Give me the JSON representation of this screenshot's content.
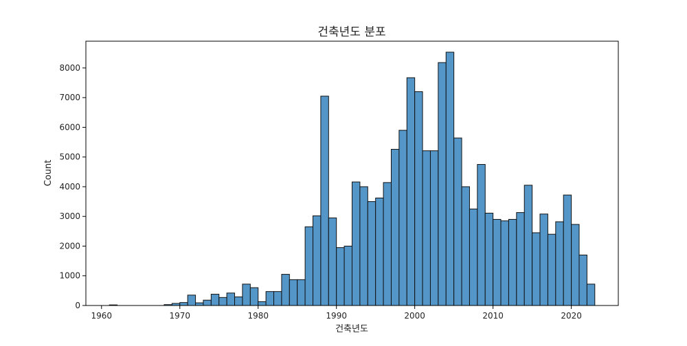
{
  "chart_data": {
    "type": "bar",
    "title": "건축년도 분포",
    "xlabel": "건축년도",
    "ylabel": "Count",
    "xlim": [
      1958,
      2026
    ],
    "ylim": [
      0,
      8900
    ],
    "grid": false,
    "xticks": [
      1960,
      1970,
      1980,
      1990,
      2000,
      2010,
      2020
    ],
    "yticks": [
      0,
      1000,
      2000,
      3000,
      4000,
      5000,
      6000,
      7000,
      8000
    ],
    "bin_start": 1961,
    "bin_width": 1,
    "bar_color": "#5596c8",
    "edge_color": "#111111",
    "values": [
      20,
      0,
      0,
      0,
      0,
      0,
      0,
      30,
      70,
      100,
      350,
      90,
      180,
      380,
      270,
      420,
      290,
      720,
      600,
      130,
      470,
      470,
      1050,
      870,
      870,
      2650,
      3020,
      7050,
      2950,
      1950,
      2000,
      4160,
      4000,
      3500,
      3620,
      4140,
      5260,
      5900,
      7670,
      7200,
      5210,
      5210,
      8180,
      8530,
      5640,
      4000,
      3250,
      4750,
      3110,
      2900,
      2850,
      2900,
      3130,
      4050,
      2450,
      3080,
      2400,
      2820,
      3720,
      2730,
      1700,
      720
    ]
  }
}
